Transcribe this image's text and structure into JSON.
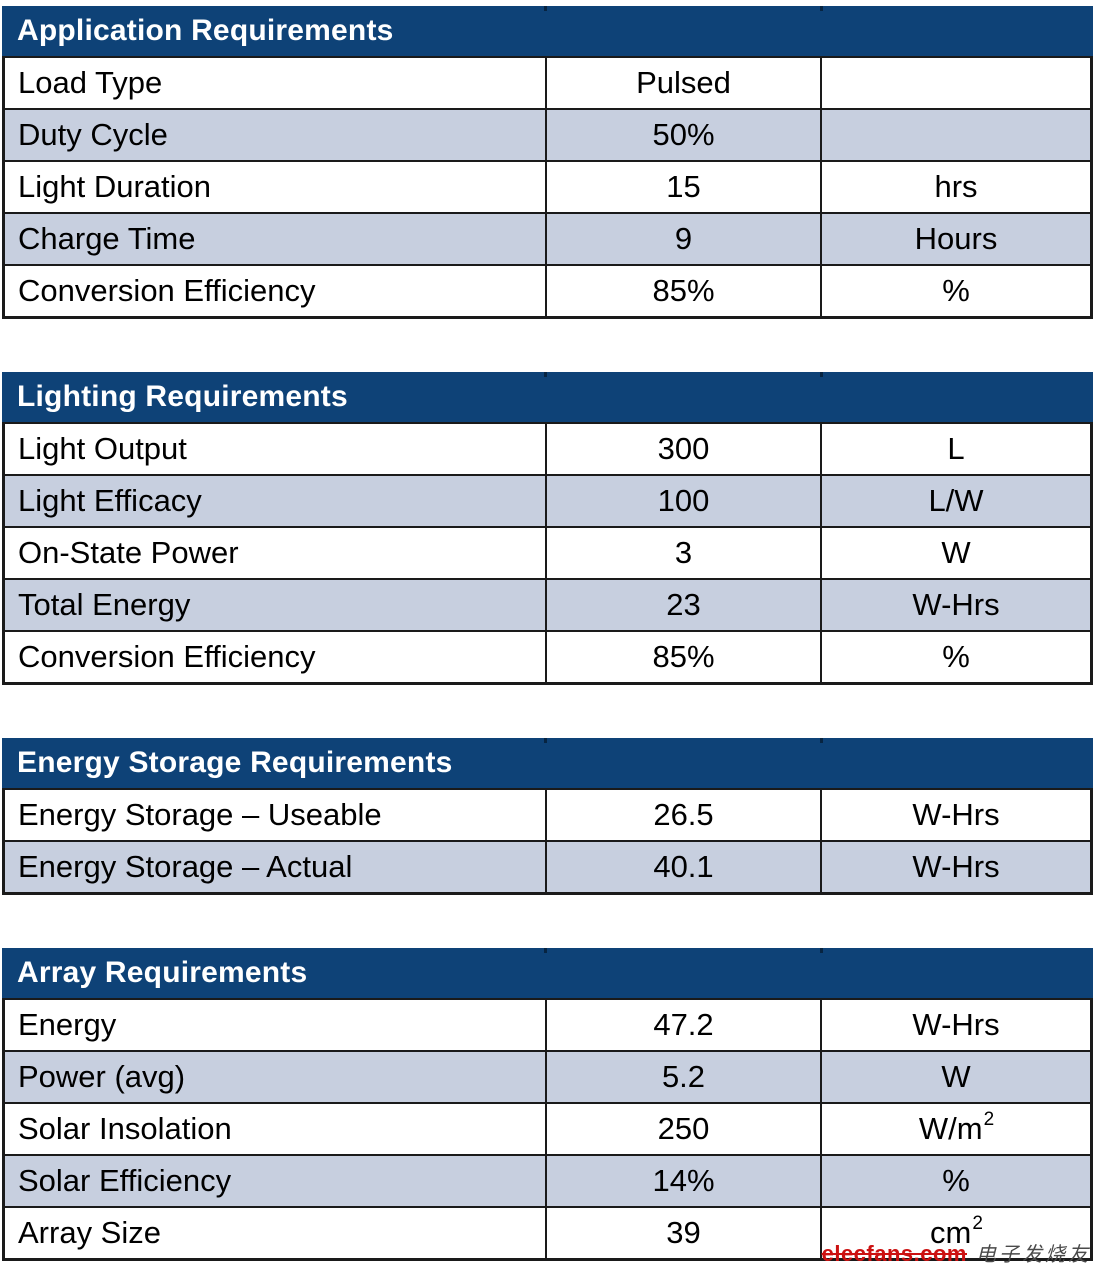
{
  "colors": {
    "header_bg": "#0e4277",
    "row_shaded_bg": "#c7cfdf",
    "row_plain_bg": "#ffffff",
    "border": "#1a1a1a",
    "header_text": "#ffffff",
    "watermark_red": "#cc1111",
    "watermark_gray": "#4a4a4a"
  },
  "tables": [
    {
      "title": "Application Requirements",
      "rows": [
        {
          "label": "Load Type",
          "value": "Pulsed",
          "unit": ""
        },
        {
          "label": "Duty Cycle",
          "value": "50%",
          "unit": ""
        },
        {
          "label": "Light Duration",
          "value": "15",
          "unit": "hrs"
        },
        {
          "label": "Charge Time",
          "value": "9",
          "unit": "Hours"
        },
        {
          "label": "Conversion Efficiency",
          "value": "85%",
          "unit": "%"
        }
      ]
    },
    {
      "title": "Lighting Requirements",
      "rows": [
        {
          "label": "Light Output",
          "value": "300",
          "unit": "L"
        },
        {
          "label": "Light Efficacy",
          "value": "100",
          "unit": "L/W"
        },
        {
          "label": "On-State Power",
          "value": "3",
          "unit": "W"
        },
        {
          "label": "Total Energy",
          "value": "23",
          "unit": "W-Hrs"
        },
        {
          "label": "Conversion Efficiency",
          "value": "85%",
          "unit": "%"
        }
      ]
    },
    {
      "title": "Energy Storage Requirements",
      "rows": [
        {
          "label": "Energy Storage – Useable",
          "value": "26.5",
          "unit": "W-Hrs"
        },
        {
          "label": "Energy Storage – Actual",
          "value": "40.1",
          "unit": "W-Hrs"
        }
      ]
    },
    {
      "title": "Array Requirements",
      "rows": [
        {
          "label": "Energy",
          "value": "47.2",
          "unit": "W-Hrs"
        },
        {
          "label": "Power (avg)",
          "value": "5.2",
          "unit": "W"
        },
        {
          "label": "Solar Insolation",
          "value": "250",
          "unit": "W/m",
          "unit_sup": "2"
        },
        {
          "label": "Solar Efficiency",
          "value": "14%",
          "unit": "%"
        },
        {
          "label": "Array Size",
          "value": "39",
          "unit": "cm",
          "unit_sup": "2"
        }
      ]
    }
  ],
  "watermark": {
    "brand": "elecfans.com",
    "cjk": "电子发烧友"
  }
}
